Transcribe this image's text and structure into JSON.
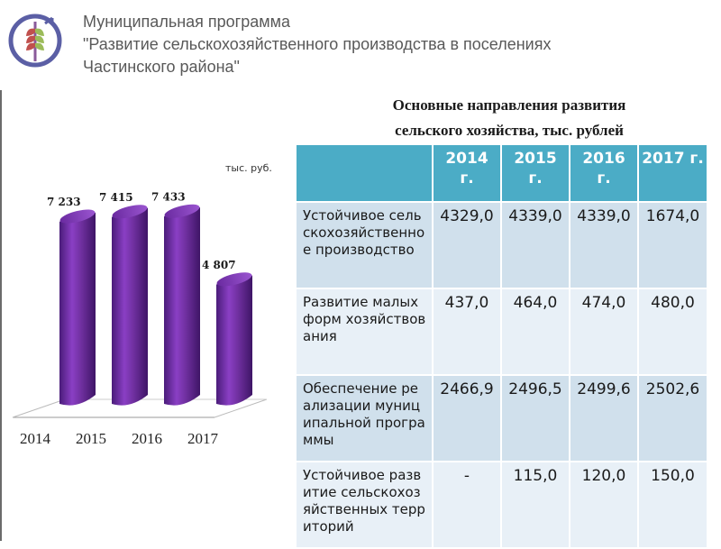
{
  "header": {
    "program_line1": "Муниципальная программа",
    "program_line2": "\"Развитие сельскохозяйственного производства в поселениях",
    "program_line3": "Частинского района\""
  },
  "subtitle": {
    "line1": "Основные направления развития",
    "line2": "сельского хозяйства, тыс. рублей"
  },
  "colors": {
    "bar": "#7030a0",
    "table_header": "#4bacc6",
    "row_odd": "#d0e0ec",
    "row_even": "#e8f0f7"
  },
  "chart_data": {
    "type": "bar",
    "categories": [
      "2014",
      "2015",
      "2016",
      "2017"
    ],
    "values": [
      7233,
      7415,
      7433,
      4807
    ],
    "value_labels": [
      "7 233",
      "7 415",
      "7 433",
      "4 807"
    ],
    "unit_label": "тыс. руб.",
    "ylim": [
      0,
      8000
    ],
    "grid": false,
    "legend": "none"
  },
  "table": {
    "headers": [
      "2014 г.",
      "2015 г.",
      "2016 г.",
      "2017 г."
    ],
    "rows": [
      {
        "label": "Устойчивое сельскохозяйственное производство",
        "values": [
          "4329,0",
          "4339,0",
          "4339,0",
          "1674,0"
        ]
      },
      {
        "label": "Развитие малых форм хозяйствования",
        "values": [
          "437,0",
          "464,0",
          "474,0",
          "480,0"
        ]
      },
      {
        "label": "Обеспечение реализации муниципальной программы",
        "values": [
          "2466,9",
          "2496,5",
          "2499,6",
          "2502,6"
        ]
      },
      {
        "label": "Устойчивое развитие сельскохозяйственных территорий",
        "values": [
          "-",
          "115,0",
          "120,0",
          "150,0"
        ]
      }
    ]
  }
}
